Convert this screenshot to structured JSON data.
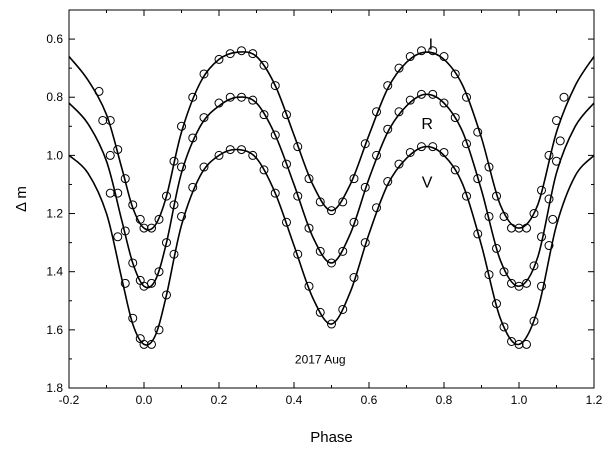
{
  "chart_data": {
    "type": "scatter",
    "title": "",
    "xlabel": "Phase",
    "ylabel": "Δ m",
    "xlim": [
      -0.2,
      1.2
    ],
    "ylim": [
      0.5,
      1.8
    ],
    "y_inverted": true,
    "x_ticks": [
      "-0.2",
      "0.0",
      "0.2",
      "0.4",
      "0.6",
      "0.8",
      "1.0",
      "1.2"
    ],
    "y_ticks": [
      "0.6",
      "0.8",
      "1.0",
      "1.2",
      "1.4",
      "1.6",
      "1.8"
    ],
    "grid": false,
    "legend": "none",
    "annotation": "2017 Aug",
    "series": [
      {
        "name": "I",
        "marker": "open-circle",
        "fit_line": true,
        "points": [
          [
            -0.12,
            0.78
          ],
          [
            -0.09,
            0.88
          ],
          [
            -0.07,
            0.98
          ],
          [
            -0.05,
            1.08
          ],
          [
            -0.03,
            1.17
          ],
          [
            -0.01,
            1.22
          ],
          [
            0.0,
            1.25
          ],
          [
            0.02,
            1.25
          ],
          [
            0.04,
            1.22
          ],
          [
            0.06,
            1.14
          ],
          [
            0.08,
            1.02
          ],
          [
            0.1,
            0.9
          ],
          [
            0.13,
            0.8
          ],
          [
            0.16,
            0.72
          ],
          [
            0.2,
            0.67
          ],
          [
            0.23,
            0.65
          ],
          [
            0.26,
            0.64
          ],
          [
            0.29,
            0.65
          ],
          [
            0.32,
            0.69
          ],
          [
            0.35,
            0.76
          ],
          [
            0.38,
            0.86
          ],
          [
            0.41,
            0.97
          ],
          [
            0.44,
            1.08
          ],
          [
            0.47,
            1.16
          ],
          [
            0.5,
            1.19
          ],
          [
            0.53,
            1.16
          ],
          [
            0.56,
            1.08
          ],
          [
            0.59,
            0.96
          ],
          [
            0.62,
            0.85
          ],
          [
            0.65,
            0.76
          ],
          [
            0.68,
            0.7
          ],
          [
            0.71,
            0.66
          ],
          [
            0.74,
            0.64
          ],
          [
            0.77,
            0.64
          ],
          [
            0.8,
            0.66
          ],
          [
            0.83,
            0.72
          ],
          [
            0.86,
            0.8
          ],
          [
            0.89,
            0.92
          ],
          [
            0.92,
            1.04
          ],
          [
            0.94,
            1.14
          ],
          [
            0.96,
            1.21
          ],
          [
            0.98,
            1.25
          ],
          [
            1.0,
            1.25
          ],
          [
            1.02,
            1.25
          ],
          [
            1.04,
            1.2
          ],
          [
            1.06,
            1.12
          ],
          [
            1.08,
            1.0
          ],
          [
            1.1,
            0.88
          ],
          [
            1.12,
            0.8
          ]
        ]
      },
      {
        "name": "R",
        "marker": "open-circle",
        "fit_line": true,
        "points": [
          [
            -0.11,
            0.88
          ],
          [
            -0.09,
            1.0
          ],
          [
            -0.07,
            1.13
          ],
          [
            -0.05,
            1.26
          ],
          [
            -0.03,
            1.37
          ],
          [
            -0.01,
            1.43
          ],
          [
            0.0,
            1.45
          ],
          [
            0.02,
            1.44
          ],
          [
            0.04,
            1.4
          ],
          [
            0.06,
            1.3
          ],
          [
            0.08,
            1.17
          ],
          [
            0.1,
            1.04
          ],
          [
            0.13,
            0.94
          ],
          [
            0.16,
            0.87
          ],
          [
            0.2,
            0.82
          ],
          [
            0.23,
            0.8
          ],
          [
            0.26,
            0.8
          ],
          [
            0.29,
            0.81
          ],
          [
            0.32,
            0.86
          ],
          [
            0.35,
            0.93
          ],
          [
            0.38,
            1.03
          ],
          [
            0.41,
            1.14
          ],
          [
            0.44,
            1.25
          ],
          [
            0.47,
            1.33
          ],
          [
            0.5,
            1.37
          ],
          [
            0.53,
            1.33
          ],
          [
            0.56,
            1.23
          ],
          [
            0.59,
            1.11
          ],
          [
            0.62,
            1.0
          ],
          [
            0.65,
            0.91
          ],
          [
            0.68,
            0.85
          ],
          [
            0.71,
            0.81
          ],
          [
            0.74,
            0.79
          ],
          [
            0.77,
            0.79
          ],
          [
            0.8,
            0.82
          ],
          [
            0.83,
            0.87
          ],
          [
            0.86,
            0.96
          ],
          [
            0.89,
            1.08
          ],
          [
            0.92,
            1.21
          ],
          [
            0.94,
            1.32
          ],
          [
            0.96,
            1.4
          ],
          [
            0.98,
            1.44
          ],
          [
            1.0,
            1.45
          ],
          [
            1.02,
            1.44
          ],
          [
            1.04,
            1.38
          ],
          [
            1.06,
            1.28
          ],
          [
            1.08,
            1.15
          ],
          [
            1.1,
            1.02
          ],
          [
            1.11,
            0.95
          ]
        ]
      },
      {
        "name": "V",
        "marker": "open-circle",
        "fit_line": true,
        "points": [
          [
            -0.09,
            1.13
          ],
          [
            -0.07,
            1.28
          ],
          [
            -0.05,
            1.44
          ],
          [
            -0.03,
            1.56
          ],
          [
            -0.01,
            1.63
          ],
          [
            0.0,
            1.65
          ],
          [
            0.02,
            1.65
          ],
          [
            0.04,
            1.6
          ],
          [
            0.06,
            1.48
          ],
          [
            0.08,
            1.34
          ],
          [
            0.1,
            1.21
          ],
          [
            0.13,
            1.11
          ],
          [
            0.16,
            1.04
          ],
          [
            0.2,
            1.0
          ],
          [
            0.23,
            0.98
          ],
          [
            0.26,
            0.98
          ],
          [
            0.29,
            1.0
          ],
          [
            0.32,
            1.05
          ],
          [
            0.35,
            1.13
          ],
          [
            0.38,
            1.23
          ],
          [
            0.41,
            1.34
          ],
          [
            0.44,
            1.45
          ],
          [
            0.47,
            1.54
          ],
          [
            0.5,
            1.58
          ],
          [
            0.53,
            1.53
          ],
          [
            0.56,
            1.42
          ],
          [
            0.59,
            1.3
          ],
          [
            0.62,
            1.18
          ],
          [
            0.65,
            1.09
          ],
          [
            0.68,
            1.03
          ],
          [
            0.71,
            0.99
          ],
          [
            0.74,
            0.97
          ],
          [
            0.77,
            0.97
          ],
          [
            0.8,
            0.99
          ],
          [
            0.83,
            1.05
          ],
          [
            0.86,
            1.14
          ],
          [
            0.89,
            1.27
          ],
          [
            0.92,
            1.41
          ],
          [
            0.94,
            1.51
          ],
          [
            0.96,
            1.59
          ],
          [
            0.98,
            1.64
          ],
          [
            1.0,
            1.65
          ],
          [
            1.02,
            1.65
          ],
          [
            1.04,
            1.57
          ],
          [
            1.06,
            1.45
          ],
          [
            1.08,
            1.31
          ],
          [
            1.09,
            1.22
          ]
        ]
      }
    ],
    "fit_curves": [
      {
        "name": "I",
        "points": [
          [
            -0.2,
            0.66
          ],
          [
            -0.15,
            0.74
          ],
          [
            -0.1,
            0.86
          ],
          [
            -0.06,
            1.04
          ],
          [
            -0.03,
            1.18
          ],
          [
            0.0,
            1.25
          ],
          [
            0.03,
            1.24
          ],
          [
            0.06,
            1.14
          ],
          [
            0.1,
            0.92
          ],
          [
            0.15,
            0.75
          ],
          [
            0.2,
            0.67
          ],
          [
            0.25,
            0.645
          ],
          [
            0.3,
            0.66
          ],
          [
            0.35,
            0.76
          ],
          [
            0.4,
            0.93
          ],
          [
            0.45,
            1.1
          ],
          [
            0.5,
            1.19
          ],
          [
            0.55,
            1.1
          ],
          [
            0.6,
            0.93
          ],
          [
            0.65,
            0.77
          ],
          [
            0.7,
            0.68
          ],
          [
            0.75,
            0.645
          ],
          [
            0.8,
            0.67
          ],
          [
            0.85,
            0.76
          ],
          [
            0.9,
            0.94
          ],
          [
            0.95,
            1.17
          ],
          [
            1.0,
            1.25
          ],
          [
            1.05,
            1.17
          ],
          [
            1.1,
            0.92
          ],
          [
            1.15,
            0.76
          ],
          [
            1.2,
            0.66
          ]
        ]
      },
      {
        "name": "R",
        "points": [
          [
            -0.2,
            0.82
          ],
          [
            -0.15,
            0.89
          ],
          [
            -0.1,
            1.02
          ],
          [
            -0.06,
            1.22
          ],
          [
            -0.03,
            1.37
          ],
          [
            0.0,
            1.45
          ],
          [
            0.03,
            1.43
          ],
          [
            0.06,
            1.3
          ],
          [
            0.1,
            1.06
          ],
          [
            0.15,
            0.9
          ],
          [
            0.2,
            0.83
          ],
          [
            0.25,
            0.8
          ],
          [
            0.3,
            0.82
          ],
          [
            0.35,
            0.93
          ],
          [
            0.4,
            1.1
          ],
          [
            0.45,
            1.28
          ],
          [
            0.5,
            1.37
          ],
          [
            0.55,
            1.27
          ],
          [
            0.6,
            1.08
          ],
          [
            0.65,
            0.92
          ],
          [
            0.7,
            0.83
          ],
          [
            0.75,
            0.79
          ],
          [
            0.8,
            0.82
          ],
          [
            0.85,
            0.92
          ],
          [
            0.9,
            1.12
          ],
          [
            0.95,
            1.36
          ],
          [
            1.0,
            1.45
          ],
          [
            1.05,
            1.35
          ],
          [
            1.1,
            1.06
          ],
          [
            1.15,
            0.9
          ],
          [
            1.2,
            0.82
          ]
        ]
      },
      {
        "name": "V",
        "points": [
          [
            -0.2,
            1.0
          ],
          [
            -0.15,
            1.06
          ],
          [
            -0.1,
            1.2
          ],
          [
            -0.06,
            1.42
          ],
          [
            -0.03,
            1.58
          ],
          [
            0.0,
            1.65
          ],
          [
            0.03,
            1.62
          ],
          [
            0.06,
            1.48
          ],
          [
            0.1,
            1.24
          ],
          [
            0.15,
            1.07
          ],
          [
            0.2,
            1.0
          ],
          [
            0.25,
            0.98
          ],
          [
            0.3,
            1.01
          ],
          [
            0.35,
            1.13
          ],
          [
            0.4,
            1.31
          ],
          [
            0.45,
            1.49
          ],
          [
            0.5,
            1.58
          ],
          [
            0.55,
            1.47
          ],
          [
            0.6,
            1.27
          ],
          [
            0.65,
            1.1
          ],
          [
            0.7,
            1.01
          ],
          [
            0.75,
            0.97
          ],
          [
            0.8,
            1.0
          ],
          [
            0.85,
            1.1
          ],
          [
            0.9,
            1.31
          ],
          [
            0.95,
            1.56
          ],
          [
            1.0,
            1.65
          ],
          [
            1.05,
            1.53
          ],
          [
            1.1,
            1.24
          ],
          [
            1.15,
            1.07
          ],
          [
            1.2,
            1.0
          ]
        ]
      }
    ]
  }
}
